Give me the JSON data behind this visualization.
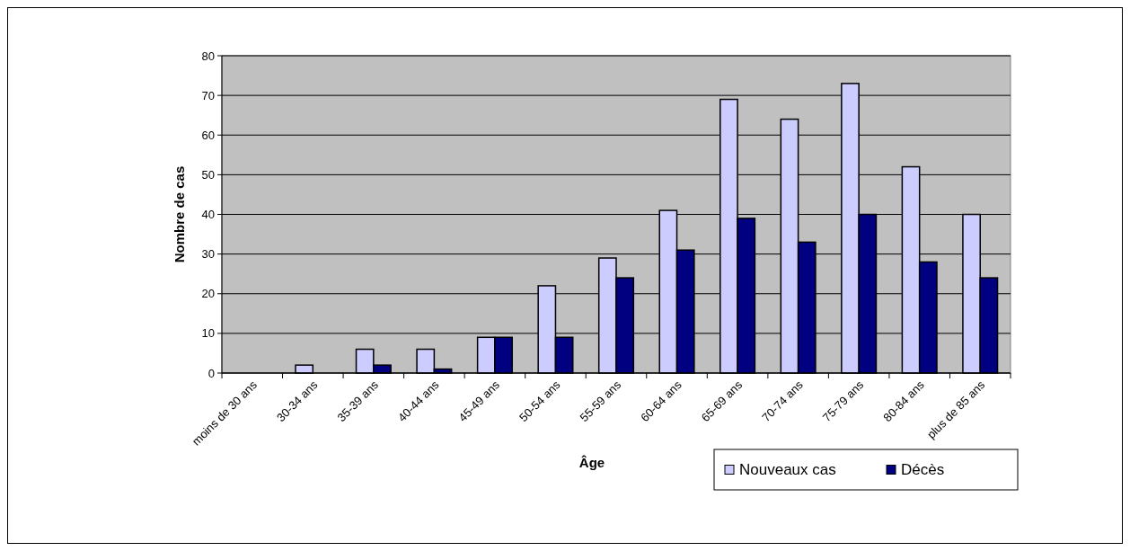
{
  "chart_data": {
    "type": "bar",
    "xlabel": "Âge",
    "ylabel": "Nombre de cas",
    "categories": [
      "moins de 30 ans",
      "30-34 ans",
      "35-39 ans",
      "40-44 ans",
      "45-49 ans",
      "50-54 ans",
      "55-59 ans",
      "60-64 ans",
      "65-69 ans",
      "70-74 ans",
      "75-79 ans",
      "80-84 ans",
      "plus de 85 ans"
    ],
    "series": [
      {
        "name": "Nouveaux cas",
        "color": "#ccccff",
        "values": [
          0,
          2,
          6,
          6,
          9,
          22,
          29,
          41,
          69,
          64,
          73,
          52,
          40
        ]
      },
      {
        "name": "Décès",
        "color": "#000080",
        "values": [
          0,
          0,
          2,
          1,
          9,
          9,
          24,
          31,
          39,
          33,
          40,
          28,
          24
        ]
      }
    ],
    "ylim": [
      0,
      80
    ],
    "yticks": [
      0,
      10,
      20,
      30,
      40,
      50,
      60,
      70,
      80
    ],
    "grid": "y",
    "legend": "bottom right"
  }
}
